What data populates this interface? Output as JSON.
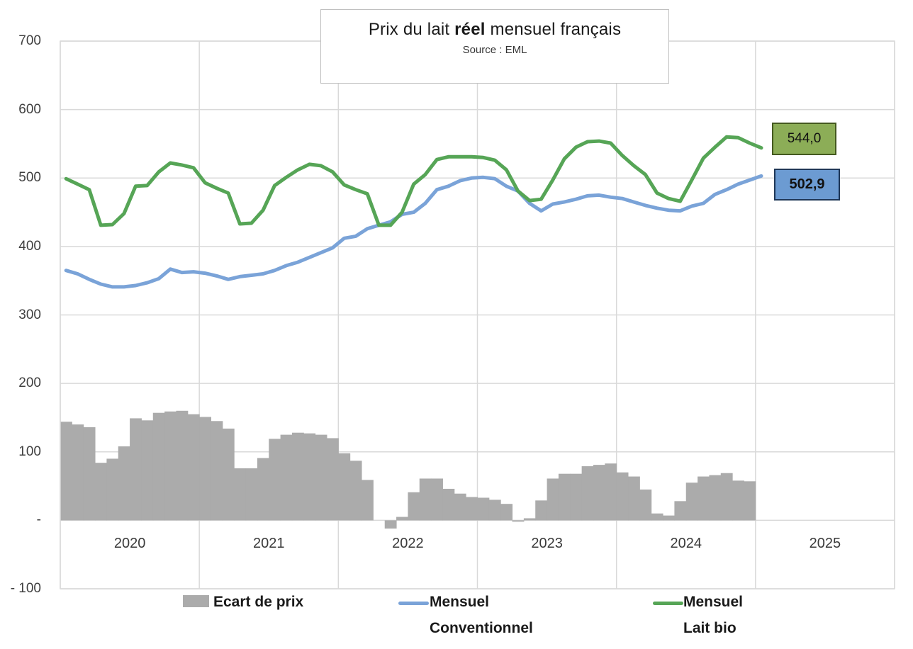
{
  "title": {
    "prefix": "Prix du lait ",
    "bold": "réel",
    "suffix": " mensuel français",
    "subtitle": "Source : EML"
  },
  "y_axis": {
    "tick_values": [
      700,
      600,
      500,
      400,
      300,
      200,
      100,
      0,
      -100
    ],
    "tick_labels": [
      "700",
      "600",
      "500",
      "400",
      "300",
      "200",
      "100",
      "-",
      "- 100"
    ]
  },
  "x_axis": {
    "year_labels": [
      "2020",
      "2021",
      "2022",
      "2023",
      "2024",
      "2025"
    ]
  },
  "legend": {
    "items": [
      {
        "line1": "Ecart de prix",
        "line2": "",
        "swatch": "bar"
      },
      {
        "line1": "Mensuel",
        "line2": "Conventionnel",
        "swatch": "line-blue"
      },
      {
        "line1": "Mensuel",
        "line2": "Lait bio",
        "swatch": "line-green"
      }
    ]
  },
  "callouts": {
    "bio": {
      "value": "544,0",
      "fill": "#8cad57",
      "border": "#44591f"
    },
    "conv": {
      "value": "502,9",
      "fill": "#6c9bd2",
      "border": "#1f3757"
    }
  },
  "colors": {
    "bar": "#ababab",
    "line_conventionnel": "#7aa3d8",
    "line_bio": "#56a556",
    "gridline": "#d9d9d9"
  },
  "chart_data": {
    "type": "combo",
    "title": "Prix du lait réel mensuel français",
    "subtitle": "Source : EML",
    "x_start_month": "2020-01",
    "x_months_span_axis": 72,
    "ylim": [
      -100,
      700
    ],
    "grid": true,
    "legend_position": "bottom",
    "series": [
      {
        "name": "Ecart de prix",
        "type": "bar",
        "color": "#ababab",
        "first_month": "2020-01",
        "last_month": "2024-12",
        "values": [
          144,
          140,
          136,
          84,
          90,
          108,
          149,
          146,
          157,
          159,
          160,
          155,
          151,
          145,
          134,
          76,
          76,
          91,
          119,
          125,
          128,
          127,
          125,
          120,
          98,
          87,
          59,
          0,
          -12,
          5,
          41,
          61,
          61,
          46,
          39,
          34,
          33,
          30,
          24,
          -2,
          3,
          29,
          61,
          68,
          68,
          79,
          81,
          83,
          70,
          64,
          45,
          10,
          7,
          28,
          55,
          64,
          66,
          69,
          58,
          57
        ]
      },
      {
        "name": "Mensuel Conventionnel",
        "type": "line",
        "color": "#7aa3d8",
        "first_month": "2020-01",
        "last_month": "2025-01",
        "last_value_label": "502,9",
        "values": [
          365,
          360,
          352,
          345,
          341,
          341,
          343,
          347,
          353,
          367,
          362,
          363,
          361,
          357,
          352,
          356,
          358,
          360,
          365,
          372,
          377,
          384,
          391,
          398,
          412,
          415,
          426,
          431,
          436,
          447,
          450,
          463,
          483,
          488,
          496,
          500,
          501,
          499,
          488,
          481,
          463,
          452,
          462,
          465,
          469,
          474,
          475,
          472,
          470,
          465,
          460,
          456,
          453,
          452,
          459,
          463,
          476,
          483,
          491,
          497,
          502.9
        ]
      },
      {
        "name": "Mensuel Lait bio",
        "type": "line",
        "color": "#56a556",
        "first_month": "2020-01",
        "last_month": "2025-01",
        "last_value_label": "544,0",
        "values": [
          499,
          491,
          483,
          431,
          432,
          448,
          488,
          489,
          509,
          522,
          519,
          515,
          493,
          485,
          478,
          433,
          434,
          453,
          489,
          501,
          512,
          520,
          518,
          509,
          490,
          483,
          477,
          431,
          431,
          450,
          491,
          505,
          527,
          531,
          531,
          531,
          530,
          526,
          512,
          481,
          467,
          469,
          497,
          528,
          545,
          553,
          554,
          551,
          533,
          518,
          505,
          478,
          470,
          466,
          497,
          529,
          545,
          560,
          559,
          551,
          544.0
        ]
      }
    ]
  }
}
